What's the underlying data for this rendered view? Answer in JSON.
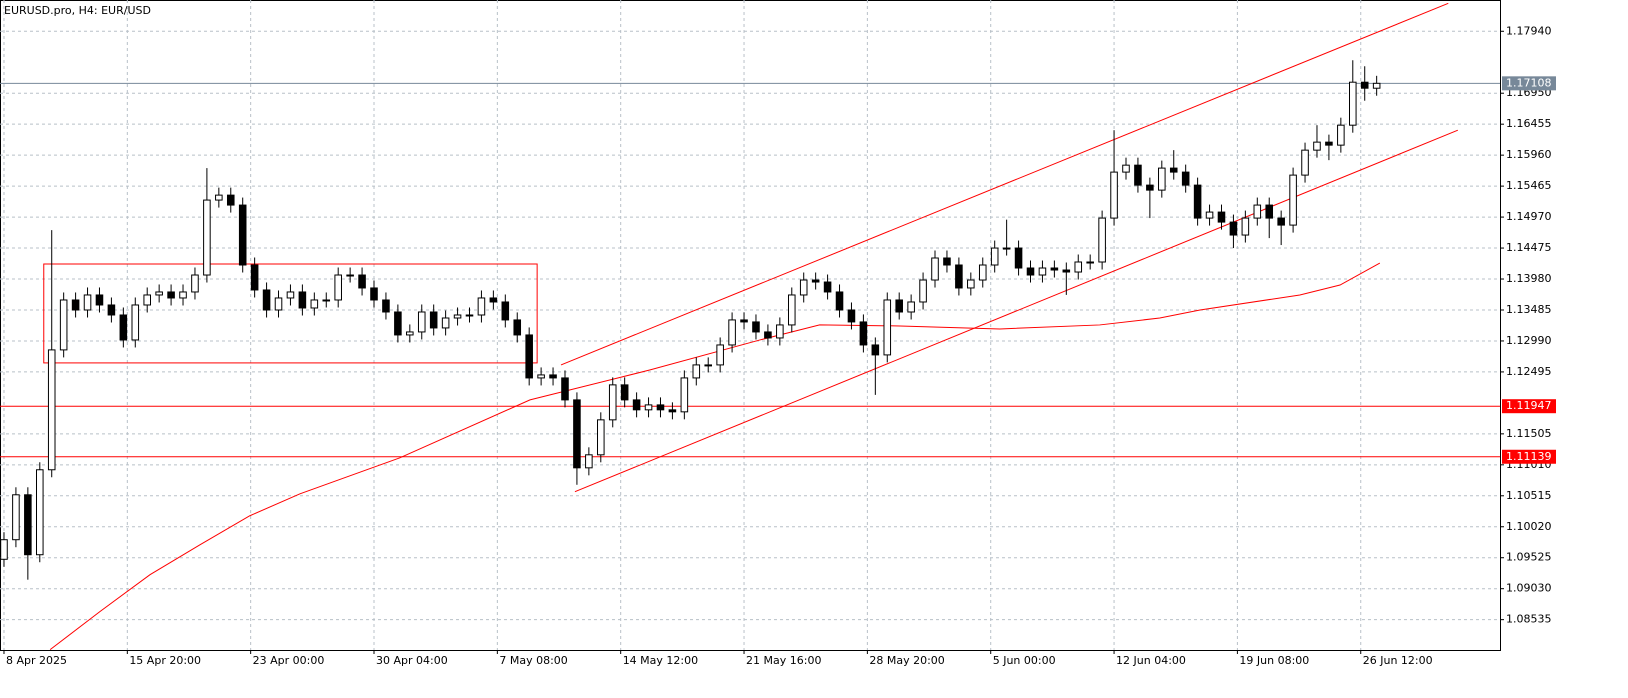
{
  "chart_data": {
    "type": "candlestick",
    "title": "EURUSD.pro, H4:  EUR/USD",
    "xlim": [
      -1,
      376
    ],
    "ylim": [
      1.0805,
      1.1844
    ],
    "up_color": "#ffffff",
    "down_color": "#000000",
    "grid": true,
    "xticks": [
      {
        "value": 0,
        "label": "8 Apr 2025"
      },
      {
        "value": 31,
        "label": "15 Apr 20:00"
      },
      {
        "value": 62,
        "label": "23 Apr 00:00"
      },
      {
        "value": 93,
        "label": "30 Apr 04:00"
      },
      {
        "value": 124,
        "label": "7 May 08:00"
      },
      {
        "value": 155,
        "label": "14 May 12:00"
      },
      {
        "value": 186,
        "label": "21 May 16:00"
      },
      {
        "value": 217,
        "label": "28 May 20:00"
      },
      {
        "value": 248,
        "label": "5 Jun 00:00"
      },
      {
        "value": 279,
        "label": "12 Jun 04:00"
      },
      {
        "value": 310,
        "label": "19 Jun 08:00"
      },
      {
        "value": 341,
        "label": "26 Jun 12:00"
      }
    ],
    "yticks": [
      {
        "value": 1.1794,
        "label": "1.17940"
      },
      {
        "value": 1.1695,
        "label": "1.16950"
      },
      {
        "value": 1.16455,
        "label": "1.16455"
      },
      {
        "value": 1.1596,
        "label": "1.15960"
      },
      {
        "value": 1.15465,
        "label": "1.15465"
      },
      {
        "value": 1.1497,
        "label": "1.14970"
      },
      {
        "value": 1.14475,
        "label": "1.14475"
      },
      {
        "value": 1.1398,
        "label": "1.13980"
      },
      {
        "value": 1.13485,
        "label": "1.13485"
      },
      {
        "value": 1.1299,
        "label": "1.12990"
      },
      {
        "value": 1.12495,
        "label": "1.12495"
      },
      {
        "value": 1.11505,
        "label": "1.11505"
      },
      {
        "value": 1.1101,
        "label": "1.11010"
      },
      {
        "value": 1.10515,
        "label": "1.10515"
      },
      {
        "value": 1.1002,
        "label": "1.10020"
      },
      {
        "value": 1.09525,
        "label": "1.09525"
      },
      {
        "value": 1.0903,
        "label": "1.09030"
      },
      {
        "value": 1.08535,
        "label": "1.08535"
      }
    ],
    "price_lines": [
      {
        "value": 1.17108,
        "label": "1.17108",
        "color": "#778899"
      },
      {
        "value": 1.11947,
        "label": "1.11947",
        "color": "#ff0000"
      },
      {
        "value": 1.11139,
        "label": "1.11139",
        "color": "#ff0000"
      }
    ],
    "x": [
      0,
      3,
      6,
      9,
      12,
      15,
      18,
      21,
      24,
      27,
      30,
      33,
      36,
      39,
      42,
      45,
      48,
      51,
      54,
      57,
      60,
      63,
      66,
      69,
      72,
      75,
      78,
      81,
      84,
      87,
      90,
      93,
      96,
      99,
      102,
      105,
      108,
      111,
      114,
      117,
      120,
      123,
      126,
      129,
      132,
      135,
      138,
      141,
      144,
      147,
      150,
      153,
      156,
      159,
      162,
      165,
      168,
      171,
      174,
      177,
      180,
      183,
      186,
      189,
      192,
      195,
      198,
      201,
      204,
      207,
      210,
      213,
      216,
      219,
      222,
      225,
      228,
      231,
      234,
      237,
      240,
      243,
      246,
      249,
      252,
      255,
      258,
      261,
      264,
      267,
      270,
      273,
      276,
      279,
      282,
      285,
      288,
      291,
      294,
      297,
      300,
      303,
      306,
      309,
      312,
      315,
      318,
      321,
      324,
      327,
      330,
      333,
      336,
      339,
      342,
      345
    ],
    "open": [
      1.095,
      1.09813,
      1.10531,
      1.09573,
      1.10931,
      1.12847,
      1.13645,
      1.13485,
      1.13725,
      1.13565,
      1.13405,
      1.13006,
      1.13565,
      1.13725,
      1.13773,
      1.13677,
      1.13773,
      1.14044,
      1.15242,
      1.15321,
      1.15162,
      1.14204,
      1.13805,
      1.13485,
      1.13677,
      1.13773,
      1.13517,
      1.13645,
      1.13645,
      1.14044,
      1.14044,
      1.13837,
      1.13645,
      1.13453,
      1.13086,
      1.13134,
      1.13453,
      1.13198,
      1.13357,
      1.13405,
      1.13405,
      1.13677,
      1.13613,
      1.13326,
      1.13086,
      1.12399,
      1.12447,
      1.12399,
      1.12048,
      1.10962,
      1.1117,
      1.11729,
      1.12288,
      1.12048,
      1.11889,
      1.11968,
      1.11889,
      1.11857,
      1.12399,
      1.12607,
      1.12607,
      1.12926,
      1.13326,
      1.13294,
      1.13134,
      1.13038,
      1.13246,
      1.13725,
      1.13964,
      1.13932,
      1.13773,
      1.13485,
      1.13294,
      1.12926,
      1.12767,
      1.13645,
      1.13453,
      1.13613,
      1.13964,
      1.14316,
      1.14204,
      1.13837,
      1.13964,
      1.14204,
      1.14475,
      1.14475,
      1.14156,
      1.14044,
      1.14156,
      1.14124,
      1.14092,
      1.14252,
      1.14252,
      1.14954,
      1.15689,
      1.158,
      1.15481,
      1.15401,
      1.15753,
      1.15689,
      1.15481,
      1.14954,
      1.1505,
      1.1489,
      1.14683,
      1.14954,
      1.15162,
      1.14954,
      1.14842,
      1.15641,
      1.1604,
      1.16168,
      1.1612,
      1.16439,
      1.17126,
      1.1703
    ],
    "high": [
      1.09933,
      1.10651,
      1.10651,
      1.11051,
      1.14762,
      1.13765,
      1.13765,
      1.13845,
      1.13845,
      1.13685,
      1.13525,
      1.13685,
      1.13845,
      1.13893,
      1.13893,
      1.13893,
      1.14164,
      1.15753,
      1.15441,
      1.15441,
      1.15282,
      1.14324,
      1.13925,
      1.13797,
      1.13893,
      1.13893,
      1.13765,
      1.13765,
      1.14164,
      1.14164,
      1.14164,
      1.13957,
      1.13765,
      1.13573,
      1.13254,
      1.13573,
      1.13573,
      1.13477,
      1.13525,
      1.13525,
      1.13797,
      1.13797,
      1.13733,
      1.13446,
      1.13206,
      1.12567,
      1.12567,
      1.12519,
      1.12168,
      1.1129,
      1.11849,
      1.12408,
      1.12408,
      1.12168,
      1.12088,
      1.12088,
      1.12009,
      1.12519,
      1.12727,
      1.12727,
      1.13046,
      1.13446,
      1.13446,
      1.13414,
      1.13254,
      1.13366,
      1.13845,
      1.14084,
      1.14084,
      1.14052,
      1.13893,
      1.13605,
      1.13414,
      1.13046,
      1.13765,
      1.13765,
      1.13733,
      1.14084,
      1.14436,
      1.14436,
      1.14324,
      1.14084,
      1.14324,
      1.14595,
      1.14929,
      1.14595,
      1.14276,
      1.14276,
      1.14276,
      1.14244,
      1.14372,
      1.14372,
      1.15074,
      1.16359,
      1.1592,
      1.1592,
      1.15601,
      1.15873,
      1.1604,
      1.15809,
      1.15601,
      1.1517,
      1.1517,
      1.1501,
      1.15074,
      1.15282,
      1.15282,
      1.15074,
      1.15761,
      1.1616,
      1.16439,
      1.16288,
      1.16559,
      1.17477,
      1.17381,
      1.17228
    ],
    "low": [
      1.0938,
      1.09693,
      1.09174,
      1.09453,
      1.10811,
      1.12727,
      1.13365,
      1.13365,
      1.13445,
      1.13285,
      1.12886,
      1.12886,
      1.13445,
      1.13605,
      1.13557,
      1.13557,
      1.13653,
      1.13924,
      1.15122,
      1.15042,
      1.14084,
      1.13685,
      1.13365,
      1.13365,
      1.13557,
      1.13397,
      1.13397,
      1.13525,
      1.13525,
      1.13924,
      1.13717,
      1.13525,
      1.13333,
      1.12966,
      1.12966,
      1.13014,
      1.13078,
      1.13078,
      1.13237,
      1.13285,
      1.13285,
      1.13493,
      1.13206,
      1.12966,
      1.12279,
      1.12279,
      1.12279,
      1.11928,
      1.10691,
      1.10842,
      1.1105,
      1.11609,
      1.11928,
      1.11769,
      1.11769,
      1.11769,
      1.11737,
      1.11737,
      1.12279,
      1.12487,
      1.12487,
      1.12806,
      1.13174,
      1.13014,
      1.12918,
      1.12918,
      1.13126,
      1.13605,
      1.13812,
      1.13653,
      1.13365,
      1.13174,
      1.12806,
      1.12128,
      1.12647,
      1.13333,
      1.13333,
      1.13493,
      1.13844,
      1.14084,
      1.13717,
      1.13717,
      1.13844,
      1.14084,
      1.14355,
      1.14036,
      1.13924,
      1.13924,
      1.14004,
      1.13726,
      1.13972,
      1.14132,
      1.14132,
      1.14834,
      1.15569,
      1.15361,
      1.14954,
      1.15281,
      1.15569,
      1.15361,
      1.14834,
      1.14834,
      1.1477,
      1.14475,
      1.14563,
      1.14834,
      1.14634,
      1.14523,
      1.14722,
      1.15521,
      1.1592,
      1.1588,
      1.16,
      1.16319,
      1.1683,
      1.1691
    ],
    "close": [
      1.09813,
      1.10531,
      1.09573,
      1.10931,
      1.12847,
      1.13645,
      1.13485,
      1.13725,
      1.13565,
      1.13405,
      1.13006,
      1.13565,
      1.13725,
      1.13773,
      1.13677,
      1.13773,
      1.14044,
      1.15242,
      1.15321,
      1.15162,
      1.14204,
      1.13805,
      1.13485,
      1.13677,
      1.13773,
      1.13517,
      1.13645,
      1.13645,
      1.14044,
      1.14044,
      1.13837,
      1.13645,
      1.13453,
      1.13086,
      1.13134,
      1.13453,
      1.13198,
      1.13357,
      1.13405,
      1.13405,
      1.13677,
      1.13613,
      1.13326,
      1.13086,
      1.12399,
      1.12447,
      1.12399,
      1.12048,
      1.10962,
      1.1117,
      1.11729,
      1.12288,
      1.12048,
      1.11889,
      1.11968,
      1.11889,
      1.11857,
      1.12399,
      1.12607,
      1.12607,
      1.12926,
      1.13326,
      1.13294,
      1.13134,
      1.13038,
      1.13246,
      1.13725,
      1.13964,
      1.13932,
      1.13773,
      1.13485,
      1.13294,
      1.12926,
      1.12767,
      1.13645,
      1.13453,
      1.13613,
      1.13964,
      1.14316,
      1.14204,
      1.13837,
      1.13964,
      1.14204,
      1.14475,
      1.14475,
      1.14156,
      1.14044,
      1.14156,
      1.14124,
      1.14092,
      1.14252,
      1.14252,
      1.14954,
      1.15689,
      1.158,
      1.15481,
      1.15401,
      1.15753,
      1.15689,
      1.15481,
      1.14954,
      1.1505,
      1.1489,
      1.14683,
      1.14954,
      1.15162,
      1.14954,
      1.14842,
      1.15641,
      1.1604,
      1.16168,
      1.1612,
      1.16439,
      1.17126,
      1.1703,
      1.17108
    ],
    "moving_average": {
      "color": "#ff0000",
      "x": [
        11.6,
        24.1,
        36.7,
        49.3,
        61.8,
        74.4,
        99.5,
        132.2,
        162.4,
        190,
        205,
        225.2,
        250.3,
        275.4,
        290.5,
        300.6,
        325.7,
        335.8,
        345.8
      ],
      "y": [
        1.08056,
        1.08663,
        1.09254,
        1.09733,
        1.10196,
        1.10547,
        1.11122,
        1.12048,
        1.12527,
        1.13006,
        1.13246,
        1.1323,
        1.13182,
        1.13246,
        1.13357,
        1.13485,
        1.13725,
        1.13884,
        1.14236
      ]
    },
    "channel_lines": [
      {
        "color": "#ff0000",
        "x": [
          140,
          363
        ],
        "y": [
          1.12607,
          1.18387
        ]
      },
      {
        "color": "#ff0000",
        "x": [
          143.5,
          365.4
        ],
        "y": [
          1.1058,
          1.16359
        ]
      }
    ],
    "rectangle": {
      "color": "#ff0000",
      "x": [
        10,
        134
      ],
      "y": [
        1.12639,
        1.1422
      ]
    }
  }
}
